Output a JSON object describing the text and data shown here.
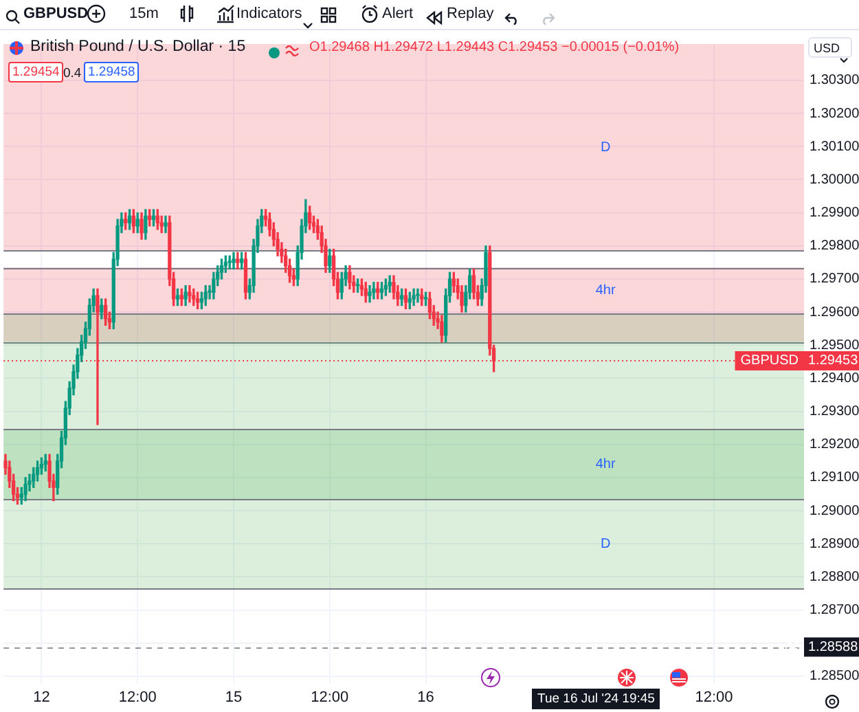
{
  "chart_data": {
    "type": "candlestick",
    "title": "British Pound / U.S. Dollar · 15",
    "subtitle": "O1.29468 H1.29472 L1.29443 C1.29453 −0.00015 (−0.01%)",
    "ylabel": "USD",
    "annotations": [
      "GBPUSD",
      "15m",
      "Indicators",
      "Alert",
      "Replay",
      "1.29454",
      "0.4",
      "1.29458",
      "Tue 16 Jul '24 19:45",
      {
        "text": "1.29453",
        "y": 1.29453
      },
      {
        "text": "1.28588",
        "y": 1.28588
      }
    ],
    "categories": [
      null,
      null,
      null,
      null,
      null,
      null,
      null,
      null,
      null,
      "12",
      null,
      null,
      null,
      null,
      null,
      null,
      null,
      null,
      null,
      null,
      null,
      null,
      null,
      null,
      null,
      null,
      null,
      null,
      null,
      null,
      null,
      null,
      null,
      "12:00",
      null,
      null,
      null,
      null,
      null,
      null,
      null,
      null,
      null,
      null,
      null,
      null,
      null,
      null,
      null,
      null,
      null,
      null,
      null,
      null,
      null,
      null,
      null,
      "15",
      null,
      null,
      null,
      null,
      null,
      null,
      null,
      null,
      null,
      null,
      null,
      null,
      null,
      null,
      null,
      null,
      null,
      null,
      null,
      null,
      null,
      null,
      null,
      "12:00",
      null,
      null,
      null,
      null,
      null,
      null,
      null,
      null,
      null,
      null,
      null,
      null,
      null,
      null,
      null,
      null,
      null,
      null,
      null,
      null,
      null,
      null,
      null,
      "16",
      null,
      null,
      null,
      null,
      null,
      null,
      null,
      null,
      null,
      null,
      null,
      null,
      null,
      null,
      null,
      null,
      null,
      null,
      null,
      null,
      null,
      null,
      null,
      null,
      null,
      null,
      null,
      null,
      null,
      null,
      null,
      null,
      null,
      null,
      null,
      null,
      null,
      null,
      null,
      null,
      null,
      null,
      null,
      null,
      null,
      null,
      null,
      null,
      null,
      null,
      null,
      null,
      null,
      null,
      null,
      null,
      null,
      null,
      null,
      null,
      null,
      null,
      null,
      null,
      null,
      null,
      null,
      null,
      null,
      null,
      null,
      "12:00",
      null,
      null,
      null,
      null,
      null,
      null,
      null,
      null,
      null,
      null,
      null,
      null,
      null,
      null,
      null,
      null,
      null,
      null,
      null,
      null,
      null,
      null
    ],
    "ohlc": [
      [
        1.2915,
        1.2917,
        1.2911,
        1.2913
      ],
      [
        1.2913,
        1.2915,
        1.2907,
        1.2909
      ],
      [
        1.2909,
        1.2911,
        1.2903,
        1.2905
      ],
      [
        1.2905,
        1.2907,
        1.2902,
        1.2904
      ],
      [
        1.2904,
        1.2907,
        1.2902,
        1.2905
      ],
      [
        1.2905,
        1.291,
        1.2903,
        1.2908
      ],
      [
        1.2908,
        1.2911,
        1.2906,
        1.2909
      ],
      [
        1.2909,
        1.2913,
        1.2907,
        1.2911
      ],
      [
        1.2911,
        1.2915,
        1.2909,
        1.2913
      ],
      [
        1.2913,
        1.2916,
        1.2911,
        1.2914
      ],
      [
        1.2914,
        1.2917,
        1.2912,
        1.2915
      ],
      [
        1.2915,
        1.2917,
        1.2907,
        1.2909
      ],
      [
        1.2909,
        1.2911,
        1.2903,
        1.2907
      ],
      [
        1.2907,
        1.2917,
        1.2905,
        1.2915
      ],
      [
        1.2915,
        1.2924,
        1.2913,
        1.2922
      ],
      [
        1.2922,
        1.2933,
        1.292,
        1.2931
      ],
      [
        1.2931,
        1.2939,
        1.2929,
        1.2937
      ],
      [
        1.2937,
        1.2944,
        1.2935,
        1.2942
      ],
      [
        1.2942,
        1.2949,
        1.294,
        1.2947
      ],
      [
        1.2947,
        1.2953,
        1.2945,
        1.2951
      ],
      [
        1.2951,
        1.2957,
        1.2949,
        1.2955
      ],
      [
        1.2955,
        1.2964,
        1.2953,
        1.2962
      ],
      [
        1.2962,
        1.2967,
        1.296,
        1.2965
      ],
      [
        1.2965,
        1.2967,
        1.2926,
        1.296
      ],
      [
        1.296,
        1.2964,
        1.2958,
        1.2962
      ],
      [
        1.2962,
        1.2964,
        1.2956,
        1.2958
      ],
      [
        1.2958,
        1.296,
        1.2955,
        1.2957
      ],
      [
        1.2957,
        1.2978,
        1.2955,
        1.2976
      ],
      [
        1.2976,
        1.2988,
        1.2974,
        1.2986
      ],
      [
        1.2986,
        1.299,
        1.2984,
        1.2988
      ],
      [
        1.2988,
        1.299,
        1.2985,
        1.2987
      ],
      [
        1.2987,
        1.2991,
        1.2985,
        1.2989
      ],
      [
        1.2989,
        1.2991,
        1.2984,
        1.2986
      ],
      [
        1.2986,
        1.299,
        1.2984,
        1.2988
      ],
      [
        1.2988,
        1.299,
        1.2982,
        1.2984
      ],
      [
        1.2984,
        1.2991,
        1.2982,
        1.2989
      ],
      [
        1.2989,
        1.2991,
        1.2986,
        1.2988
      ],
      [
        1.2988,
        1.2991,
        1.2986,
        1.2989
      ],
      [
        1.2989,
        1.2991,
        1.2985,
        1.2987
      ],
      [
        1.2987,
        1.2989,
        1.2984,
        1.2986
      ],
      [
        1.2986,
        1.2989,
        1.2984,
        1.2987
      ],
      [
        1.2987,
        1.2989,
        1.2968,
        1.297
      ],
      [
        1.297,
        1.2972,
        1.2962,
        1.2964
      ],
      [
        1.2964,
        1.2967,
        1.2962,
        1.2965
      ],
      [
        1.2965,
        1.2967,
        1.2962,
        1.2964
      ],
      [
        1.2964,
        1.2968,
        1.2962,
        1.2966
      ],
      [
        1.2966,
        1.2968,
        1.2963,
        1.2965
      ],
      [
        1.2965,
        1.2967,
        1.2962,
        1.2964
      ],
      [
        1.2964,
        1.2966,
        1.2961,
        1.2963
      ],
      [
        1.2963,
        1.2966,
        1.2961,
        1.2964
      ],
      [
        1.2964,
        1.2968,
        1.2962,
        1.2966
      ],
      [
        1.2966,
        1.2968,
        1.2964,
        1.2966
      ],
      [
        1.2966,
        1.2972,
        1.2964,
        1.297
      ],
      [
        1.297,
        1.2974,
        1.2968,
        1.2972
      ],
      [
        1.2972,
        1.2976,
        1.297,
        1.2974
      ],
      [
        1.2974,
        1.2977,
        1.2972,
        1.2975
      ],
      [
        1.2975,
        1.2977,
        1.2973,
        1.2975
      ],
      [
        1.2975,
        1.2978,
        1.2973,
        1.2976
      ],
      [
        1.2976,
        1.2978,
        1.2973,
        1.2975
      ],
      [
        1.2975,
        1.2978,
        1.2973,
        1.2976
      ],
      [
        1.2976,
        1.2978,
        1.2964,
        1.2966
      ],
      [
        1.2966,
        1.297,
        1.2964,
        1.2968
      ],
      [
        1.2968,
        1.2982,
        1.2966,
        1.298
      ],
      [
        1.298,
        1.2988,
        1.2978,
        1.2986
      ],
      [
        1.2986,
        1.2991,
        1.2984,
        1.2989
      ],
      [
        1.2989,
        1.2991,
        1.2986,
        1.2988
      ],
      [
        1.2988,
        1.299,
        1.2983,
        1.2985
      ],
      [
        1.2985,
        1.2987,
        1.298,
        1.2982
      ],
      [
        1.2982,
        1.2984,
        1.2977,
        1.2979
      ],
      [
        1.2979,
        1.2981,
        1.2975,
        1.2977
      ],
      [
        1.2977,
        1.2979,
        1.2972,
        1.2974
      ],
      [
        1.2974,
        1.2976,
        1.2969,
        1.2971
      ],
      [
        1.2971,
        1.2973,
        1.2968,
        1.297
      ],
      [
        1.297,
        1.298,
        1.2968,
        1.2978
      ],
      [
        1.2978,
        1.2988,
        1.2976,
        1.2986
      ],
      [
        1.2986,
        1.2994,
        1.2984,
        1.299
      ],
      [
        1.299,
        1.2992,
        1.2985,
        1.2987
      ],
      [
        1.2987,
        1.2989,
        1.2984,
        1.2986
      ],
      [
        1.2986,
        1.2988,
        1.2982,
        1.2984
      ],
      [
        1.2984,
        1.2986,
        1.2978,
        1.298
      ],
      [
        1.298,
        1.2982,
        1.2972,
        1.2974
      ],
      [
        1.2974,
        1.2979,
        1.2972,
        1.2977
      ],
      [
        1.2977,
        1.2979,
        1.2968,
        1.297
      ],
      [
        1.297,
        1.2972,
        1.2964,
        1.2966
      ],
      [
        1.2966,
        1.2972,
        1.2964,
        1.297
      ],
      [
        1.297,
        1.2974,
        1.2968,
        1.2972
      ],
      [
        1.2972,
        1.2974,
        1.2967,
        1.2969
      ],
      [
        1.2969,
        1.2971,
        1.2966,
        1.2968
      ],
      [
        1.2968,
        1.297,
        1.2966,
        1.2968
      ],
      [
        1.2968,
        1.297,
        1.2965,
        1.2967
      ],
      [
        1.2967,
        1.2969,
        1.2963,
        1.2965
      ],
      [
        1.2965,
        1.2968,
        1.2963,
        1.2966
      ],
      [
        1.2966,
        1.2969,
        1.2964,
        1.2967
      ],
      [
        1.2967,
        1.2969,
        1.2964,
        1.2966
      ],
      [
        1.2966,
        1.2969,
        1.2964,
        1.2967
      ],
      [
        1.2967,
        1.297,
        1.2965,
        1.2968
      ],
      [
        1.2968,
        1.2971,
        1.2966,
        1.2969
      ],
      [
        1.2969,
        1.2971,
        1.2964,
        1.2966
      ],
      [
        1.2966,
        1.2968,
        1.2962,
        1.2964
      ],
      [
        1.2964,
        1.2967,
        1.2962,
        1.2965
      ],
      [
        1.2965,
        1.2967,
        1.2961,
        1.2963
      ],
      [
        1.2963,
        1.2966,
        1.2961,
        1.2964
      ],
      [
        1.2964,
        1.2967,
        1.2962,
        1.2965
      ],
      [
        1.2965,
        1.2967,
        1.2963,
        1.2965
      ],
      [
        1.2965,
        1.2967,
        1.2962,
        1.2964
      ],
      [
        1.2964,
        1.2966,
        1.2962,
        1.2964
      ],
      [
        1.2964,
        1.2966,
        1.2958,
        1.296
      ],
      [
        1.296,
        1.2962,
        1.2956,
        1.2958
      ],
      [
        1.2958,
        1.296,
        1.2955,
        1.2957
      ],
      [
        1.2957,
        1.2959,
        1.2951,
        1.2953
      ],
      [
        1.2953,
        1.2967,
        1.2951,
        1.2965
      ],
      [
        1.2965,
        1.2972,
        1.2963,
        1.297
      ],
      [
        1.297,
        1.2972,
        1.2966,
        1.2968
      ],
      [
        1.2968,
        1.297,
        1.2964,
        1.2966
      ],
      [
        1.2966,
        1.2968,
        1.296,
        1.2962
      ],
      [
        1.2962,
        1.2968,
        1.296,
        1.2966
      ],
      [
        1.2966,
        1.2973,
        1.2964,
        1.2971
      ],
      [
        1.2971,
        1.2973,
        1.2964,
        1.2966
      ],
      [
        1.2966,
        1.2968,
        1.2962,
        1.2964
      ],
      [
        1.2964,
        1.297,
        1.2962,
        1.2968
      ],
      [
        1.2968,
        1.298,
        1.2966,
        1.2978
      ],
      [
        1.2978,
        1.298,
        1.2947,
        1.2949
      ],
      [
        1.2949,
        1.295,
        1.2942,
        1.29453
      ],
      null,
      null,
      null,
      null,
      null,
      null,
      null,
      null,
      null,
      null,
      null,
      null,
      null,
      null,
      null,
      null,
      null,
      null,
      null,
      null,
      null,
      null,
      null,
      null,
      null,
      null,
      null,
      null,
      null,
      null,
      null,
      null,
      null,
      null,
      null,
      null,
      null,
      null,
      null,
      null,
      null,
      null,
      null,
      null,
      null,
      null,
      null,
      null,
      null,
      null,
      null,
      null,
      null,
      null,
      null,
      null,
      null,
      null,
      null,
      null,
      null,
      null,
      null,
      null,
      null,
      null,
      null,
      null,
      null,
      null,
      null,
      null,
      null,
      null,
      null,
      null,
      null
    ],
    "ylim": [
      1.2848,
      1.3041
    ],
    "yticks": [
      {
        "value": 1.285,
        "label": "1.28500"
      },
      {
        "value": 1.286,
        "label": null
      },
      {
        "value": 1.287,
        "label": "1.28700"
      },
      {
        "value": 1.288,
        "label": "1.28800"
      },
      {
        "value": 1.289,
        "label": "1.28900"
      },
      {
        "value": 1.29,
        "label": "1.29000"
      },
      {
        "value": 1.291,
        "label": "1.29100"
      },
      {
        "value": 1.292,
        "label": "1.29200"
      },
      {
        "value": 1.293,
        "label": "1.29300"
      },
      {
        "value": 1.294,
        "label": "1.29400"
      },
      {
        "value": 1.295,
        "label": "1.29500"
      },
      {
        "value": 1.296,
        "label": "1.29600"
      },
      {
        "value": 1.297,
        "label": "1.29700"
      },
      {
        "value": 1.298,
        "label": "1.29800"
      },
      {
        "value": 1.299,
        "label": "1.29900"
      },
      {
        "value": 1.3,
        "label": "1.30000"
      },
      {
        "value": 1.301,
        "label": "1.30100"
      },
      {
        "value": 1.302,
        "label": "1.30200"
      },
      {
        "value": 1.303,
        "label": "1.30300"
      }
    ],
    "bands": [
      {
        "axis": "y",
        "from": 1.29787,
        "to": 1.3041,
        "label": "D",
        "color": "#f23645"
      },
      {
        "axis": "y",
        "from": 1.2951,
        "to": 1.29735,
        "label": "4hr",
        "color": "#f23645"
      },
      {
        "axis": "y",
        "from": 1.28765,
        "to": 1.29596,
        "label": "D",
        "color": "#4caf50"
      },
      {
        "axis": "y",
        "from": 1.29034,
        "to": 1.29247,
        "label": "4hr",
        "color": "#4caf50"
      }
    ],
    "ref_lines": [
      {
        "axis": "y",
        "value": 1.29453,
        "label": "GBPUSD",
        "color": "#f23645",
        "line_style": "dotted"
      },
      {
        "axis": "y",
        "value": 1.28588,
        "color": "#131722",
        "line_style": "dashed"
      }
    ],
    "grid": true
  }
}
